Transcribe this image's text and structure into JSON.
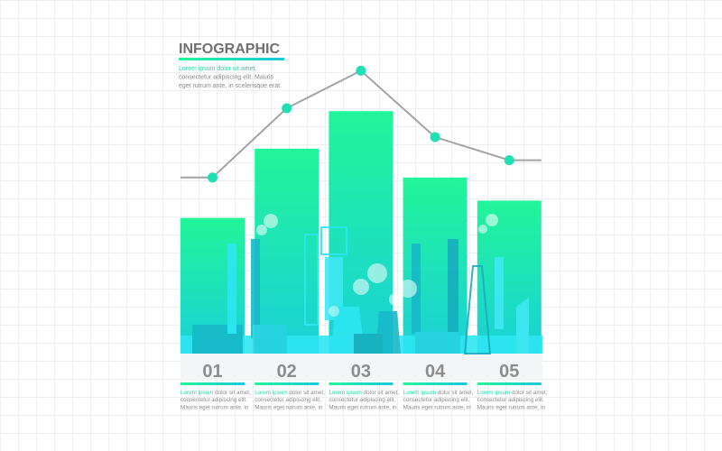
{
  "title": "INFOGRAPHIC",
  "intro": {
    "lines": [
      "Lorem ipsum dolor sit amet,",
      "consectetur adipiscing elit. Mauris",
      "eget rutrum ante, in scelerisque erat."
    ]
  },
  "chart_data": {
    "type": "bar",
    "categories": [
      "01",
      "02",
      "03",
      "04",
      "05"
    ],
    "ylim": [
      0,
      100
    ],
    "series": [
      {
        "type": "bar",
        "gradient": [
          "#21f599",
          "#1bd0d8"
        ],
        "values": [
          47,
          71,
          84,
          61,
          53
        ]
      },
      {
        "type": "line",
        "color": "#a3a3a3",
        "marker_color": "#1fe0b2",
        "values": [
          61,
          85,
          98,
          75,
          67
        ]
      }
    ],
    "captions": [
      {
        "highlight": "Lorem ipsum",
        "lines": [
          "dolor sit amet,",
          "consectetur adipiscing elit.",
          "Mauris eget rutrum ante, in"
        ]
      },
      {
        "highlight": "Lorem ipsum",
        "lines": [
          "dolor sit amet,",
          "consectetur adipiscing elit.",
          "Mauris eget rutrum ante, in"
        ]
      },
      {
        "highlight": "Lorem ipsum",
        "lines": [
          "dolor sit amet,",
          "consectetur adipiscing elit.",
          "Mauris eget rutrum ante, in"
        ]
      },
      {
        "highlight": "Lorem ipsum",
        "lines": [
          "dolor sit amet,",
          "consectetur adipiscing elit.",
          "Mauris eget rutrum ante, in"
        ]
      },
      {
        "highlight": "Lorem ipsum",
        "lines": [
          "dolor sit amet,",
          "consectetur adipiscing elit.",
          "Mauris eget rutrum ante, in"
        ]
      }
    ]
  }
}
